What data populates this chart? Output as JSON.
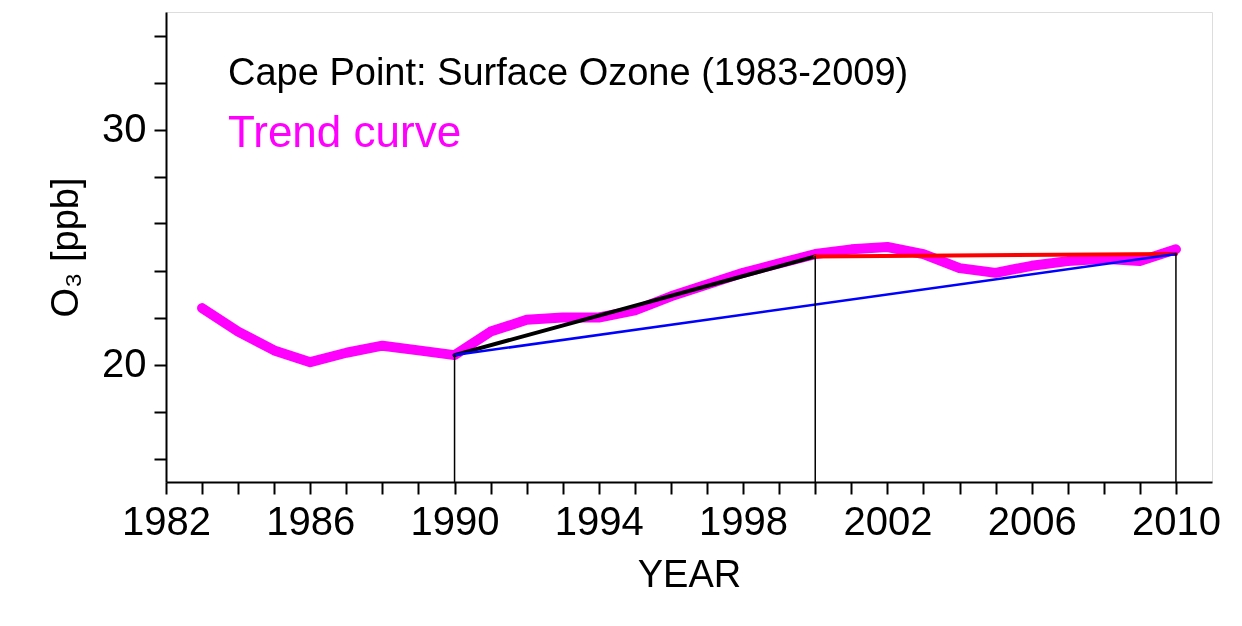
{
  "chart_data": {
    "type": "line",
    "xlabel": "YEAR",
    "ylabel": "O₃ [ppb]",
    "annotations": [
      "Cape Point: Surface Ozone (1983-2009)"
    ],
    "xlim": [
      1982,
      2011
    ],
    "ylim": [
      15,
      35
    ],
    "xticks": [
      1982,
      {
        "value": 1983,
        "label": null
      },
      {
        "value": 1984,
        "label": null
      },
      {
        "value": 1985,
        "label": null
      },
      1986,
      {
        "value": 1987,
        "label": null
      },
      {
        "value": 1988,
        "label": null
      },
      {
        "value": 1989,
        "label": null
      },
      1990,
      {
        "value": 1991,
        "label": null
      },
      {
        "value": 1992,
        "label": null
      },
      {
        "value": 1993,
        "label": null
      },
      1994,
      {
        "value": 1995,
        "label": null
      },
      {
        "value": 1996,
        "label": null
      },
      {
        "value": 1997,
        "label": null
      },
      1998,
      {
        "value": 1999,
        "label": null
      },
      {
        "value": 2000,
        "label": null
      },
      {
        "value": 2001,
        "label": null
      },
      2002,
      {
        "value": 2003,
        "label": null
      },
      {
        "value": 2004,
        "label": null
      },
      {
        "value": 2005,
        "label": null
      },
      2006,
      {
        "value": 2007,
        "label": null
      },
      {
        "value": 2008,
        "label": null
      },
      {
        "value": 2009,
        "label": null
      },
      2010
    ],
    "yticks": [
      {
        "value": 16,
        "label": null
      },
      {
        "value": 18,
        "label": null
      },
      20,
      {
        "value": 22,
        "label": null
      },
      {
        "value": 24,
        "label": null
      },
      {
        "value": 26,
        "label": null
      },
      {
        "value": 28,
        "label": null
      },
      30,
      {
        "value": 32,
        "label": null
      },
      {
        "value": 34,
        "label": null
      }
    ],
    "grid": false,
    "legend": "top left",
    "marker": "none",
    "line_style": "solid",
    "series": [
      {
        "name": "Trend curve",
        "color": "#ff00ff",
        "x": [
          1983,
          1984,
          1985,
          1986,
          1987,
          1988,
          1989,
          1990,
          1991,
          1992,
          1993,
          1994,
          1995,
          1996,
          1997,
          1998,
          1999,
          2000,
          2001,
          2002,
          2003,
          2004,
          2005,
          2006,
          2007,
          2008,
          2009,
          2010
        ],
        "values": [
          22.4,
          21.4,
          20.6,
          20.1,
          20.5,
          20.8,
          20.6,
          20.4,
          21.4,
          21.9,
          22.0,
          22.0,
          22.3,
          22.9,
          23.4,
          23.9,
          24.3,
          24.7,
          24.9,
          25.0,
          24.7,
          24.1,
          23.9,
          24.2,
          24.4,
          24.5,
          24.4,
          24.9
        ]
      },
      {
        "color": "#000000",
        "x": [
          1990,
          2000
        ],
        "values": [
          20.4,
          24.6
        ]
      },
      {
        "color": "#ff0000",
        "x": [
          2000,
          2010
        ],
        "values": [
          24.6,
          24.7
        ]
      },
      {
        "color": "#0000ff",
        "x": [
          1990,
          2010
        ],
        "values": [
          20.4,
          24.7
        ]
      },
      {
        "color": "#000000",
        "x": [
          1990,
          1990
        ],
        "values": [
          15,
          20.4
        ]
      },
      {
        "color": "#000000",
        "x": [
          2000,
          2000
        ],
        "values": [
          15,
          24.6
        ]
      },
      {
        "color": "#000000",
        "x": [
          2010,
          2010
        ],
        "values": [
          15,
          24.7
        ]
      }
    ]
  }
}
